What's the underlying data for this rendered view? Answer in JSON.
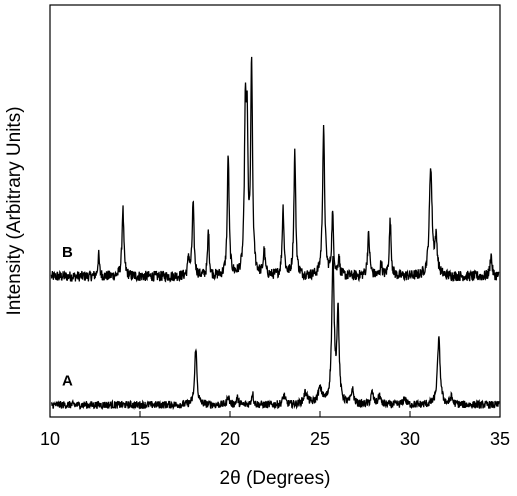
{
  "chart_data": {
    "type": "line",
    "xlabel": "2θ (Degrees)",
    "ylabel": "Intensity (Arbitrary Units)",
    "xlim": [
      10,
      35
    ],
    "xticks": [
      10,
      15,
      20,
      25,
      30,
      35
    ],
    "grid": false,
    "legend": "none",
    "series": [
      {
        "name": "B",
        "color": "#000000",
        "baseline": 58,
        "noise": 2.2,
        "peaks": [
          {
            "x": 12.7,
            "h": 9,
            "w": 0.05
          },
          {
            "x": 14.05,
            "h": 28,
            "w": 0.06
          },
          {
            "x": 17.7,
            "h": 8,
            "w": 0.05
          },
          {
            "x": 17.95,
            "h": 30,
            "w": 0.06
          },
          {
            "x": 18.8,
            "h": 19,
            "w": 0.05
          },
          {
            "x": 19.9,
            "h": 50,
            "w": 0.06
          },
          {
            "x": 20.85,
            "h": 61,
            "w": 0.06
          },
          {
            "x": 20.95,
            "h": 54,
            "w": 0.06
          },
          {
            "x": 21.2,
            "h": 86,
            "w": 0.06
          },
          {
            "x": 21.9,
            "h": 10,
            "w": 0.06
          },
          {
            "x": 22.95,
            "h": 28,
            "w": 0.06
          },
          {
            "x": 23.6,
            "h": 51,
            "w": 0.06
          },
          {
            "x": 25.2,
            "h": 60,
            "w": 0.07
          },
          {
            "x": 25.7,
            "h": 25,
            "w": 0.06
          },
          {
            "x": 26.05,
            "h": 8,
            "w": 0.05
          },
          {
            "x": 27.7,
            "h": 17,
            "w": 0.07
          },
          {
            "x": 28.4,
            "h": 6,
            "w": 0.05
          },
          {
            "x": 28.9,
            "h": 23,
            "w": 0.06
          },
          {
            "x": 31.15,
            "h": 45,
            "w": 0.09
          },
          {
            "x": 31.45,
            "h": 14,
            "w": 0.08
          },
          {
            "x": 34.5,
            "h": 9,
            "w": 0.06
          }
        ]
      },
      {
        "name": "A",
        "color": "#000000",
        "baseline": 5,
        "noise": 1.6,
        "peaks": [
          {
            "x": 18.1,
            "h": 24,
            "w": 0.07
          },
          {
            "x": 19.9,
            "h": 4,
            "w": 0.06
          },
          {
            "x": 20.4,
            "h": 3,
            "w": 0.06
          },
          {
            "x": 21.25,
            "h": 5,
            "w": 0.06
          },
          {
            "x": 23.0,
            "h": 4,
            "w": 0.08
          },
          {
            "x": 24.2,
            "h": 5,
            "w": 0.12
          },
          {
            "x": 25.0,
            "h": 6,
            "w": 0.15
          },
          {
            "x": 25.72,
            "h": 58,
            "w": 0.08
          },
          {
            "x": 26.0,
            "h": 38,
            "w": 0.07
          },
          {
            "x": 26.8,
            "h": 6,
            "w": 0.08
          },
          {
            "x": 27.9,
            "h": 5,
            "w": 0.08
          },
          {
            "x": 28.3,
            "h": 4,
            "w": 0.07
          },
          {
            "x": 29.7,
            "h": 3,
            "w": 0.08
          },
          {
            "x": 31.6,
            "h": 27,
            "w": 0.09
          },
          {
            "x": 32.3,
            "h": 3,
            "w": 0.08
          }
        ]
      }
    ]
  }
}
